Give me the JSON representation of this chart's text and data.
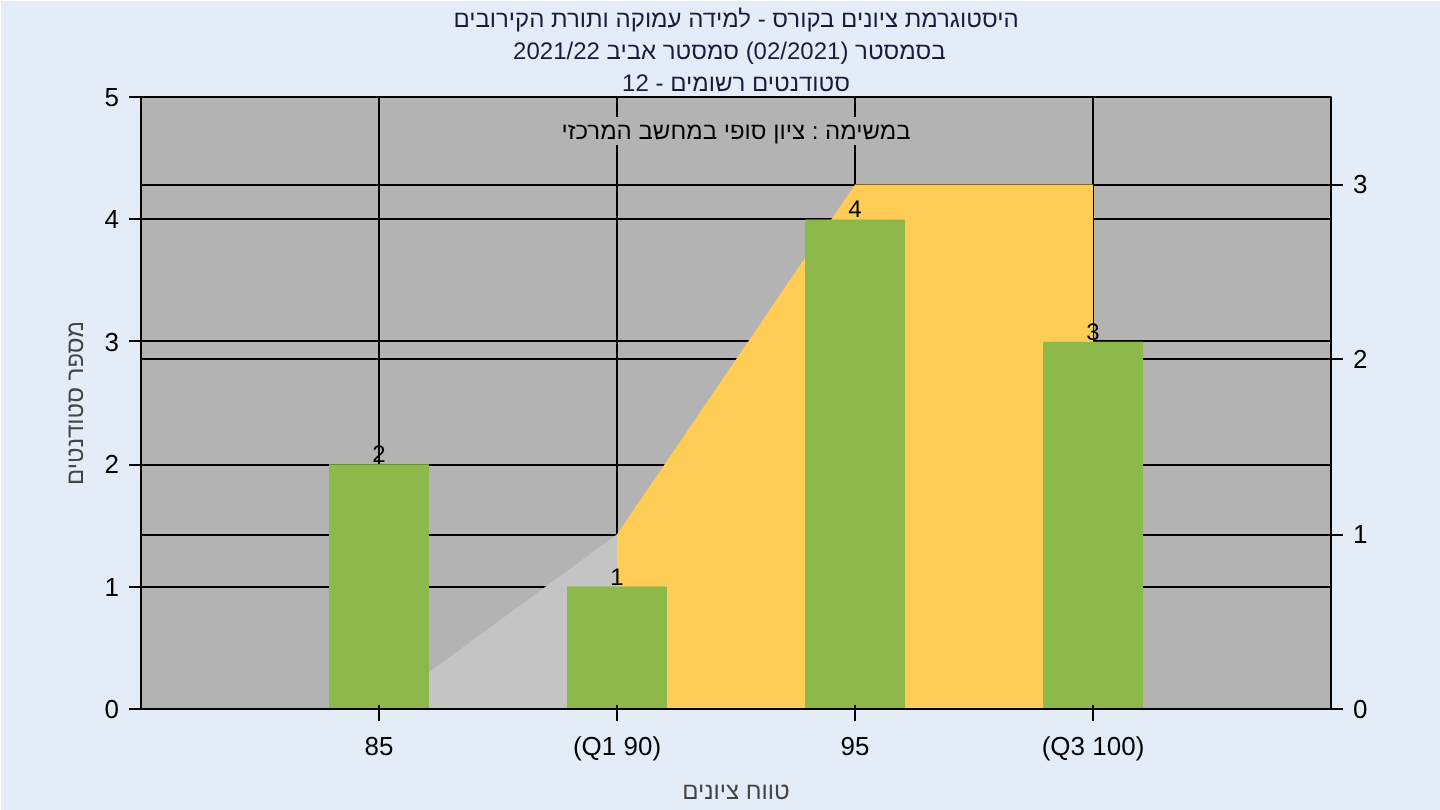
{
  "chart_data": {
    "type": "bar",
    "title": "היסטוגרמת ציונים בקורס - למידה עמוקה ותורת הקירובים",
    "subtitle": "בסמסטר  (02/2021)  סמסטר אביב 2021/22",
    "xlabel": "טווח ציונים",
    "ylabel": "מספר סטודנטים",
    "annotations": [
      "סטודנטים רשומים - 12",
      "במשימה : ציון סופי במחשב המרכזי"
    ],
    "categories": [
      "85",
      "(Q1 90)",
      "95",
      "(Q3 100)"
    ],
    "series": [
      {
        "color": "#8db84a",
        "values": [
          2,
          1,
          4,
          3
        ],
        "value_labels": [
          "2",
          "1",
          "4",
          "3"
        ]
      },
      {
        "type": "area",
        "axis": "y2",
        "color": "#c4c4c4",
        "x": [
          "85",
          "(Q1 90)"
        ],
        "values": [
          0,
          1
        ]
      },
      {
        "type": "area",
        "axis": "y2",
        "color": "#ffcc55",
        "x": [
          "(Q1 90)",
          "95",
          "(Q3 100)"
        ],
        "values": [
          1,
          3,
          3
        ]
      }
    ],
    "ylim": [
      0,
      5
    ],
    "yticks": [
      0,
      1,
      2,
      3,
      4,
      5
    ],
    "y2lim": [
      0,
      3.5
    ],
    "y2ticks": [
      0,
      1,
      2,
      3
    ],
    "grid": true
  }
}
